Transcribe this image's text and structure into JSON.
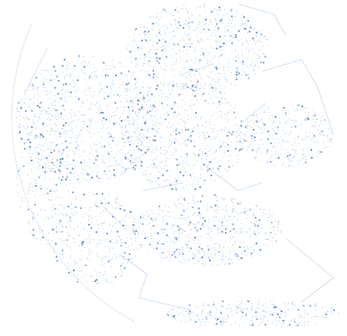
{
  "illustration": {
    "subject": "dotted-globe",
    "colors": {
      "background": "#ffffff",
      "dot_primary": "#4a78b8",
      "dot_light": "#9bb8dd",
      "line": "#c5d6ec",
      "outline": "#dde7f4"
    }
  }
}
